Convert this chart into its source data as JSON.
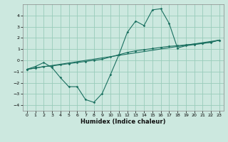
{
  "xlabel": "Humidex (Indice chaleur)",
  "bg_color": "#cce8df",
  "grid_color": "#99ccbb",
  "line_color": "#1a7060",
  "xlim": [
    -0.5,
    23.5
  ],
  "ylim": [
    -4.5,
    5.0
  ],
  "yticks": [
    -4,
    -3,
    -2,
    -1,
    0,
    1,
    2,
    3,
    4
  ],
  "xticks": [
    0,
    1,
    2,
    3,
    4,
    5,
    6,
    7,
    8,
    9,
    10,
    11,
    12,
    13,
    14,
    15,
    16,
    17,
    18,
    19,
    20,
    21,
    22,
    23
  ],
  "curve1_x": [
    0,
    1,
    2,
    3,
    4,
    5,
    6,
    7,
    8,
    9,
    10,
    11,
    12,
    13,
    14,
    15,
    16,
    17,
    18,
    19,
    20,
    21,
    22,
    23
  ],
  "curve1_y": [
    -0.8,
    -0.55,
    -0.2,
    -0.65,
    -1.55,
    -2.35,
    -2.35,
    -3.5,
    -3.75,
    -2.95,
    -1.25,
    0.5,
    2.5,
    3.5,
    3.1,
    4.5,
    4.6,
    3.3,
    1.1,
    1.3,
    1.4,
    1.5,
    1.6,
    1.8
  ],
  "curve2_x": [
    0,
    1,
    2,
    3,
    4,
    5,
    6,
    7,
    8,
    9,
    10,
    11,
    12,
    13,
    14,
    15,
    16,
    17,
    18,
    19,
    20,
    21,
    22,
    23
  ],
  "curve2_y": [
    -0.8,
    -0.7,
    -0.55,
    -0.5,
    -0.4,
    -0.3,
    -0.2,
    -0.1,
    0.0,
    0.1,
    0.3,
    0.5,
    0.7,
    0.85,
    0.95,
    1.05,
    1.15,
    1.25,
    1.3,
    1.38,
    1.45,
    1.52,
    1.62,
    1.8
  ],
  "curve3_x": [
    0,
    23
  ],
  "curve3_y": [
    -0.8,
    1.8
  ]
}
